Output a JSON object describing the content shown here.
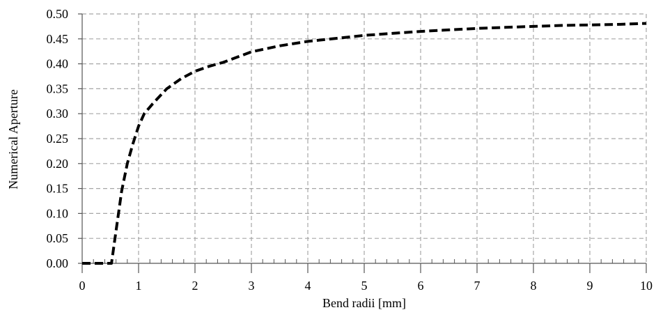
{
  "chart_data": {
    "type": "line",
    "title": "",
    "xlabel": "Bend radii [mm]",
    "ylabel": "Numerical Aperture",
    "xlim": [
      0,
      10
    ],
    "ylim": [
      0,
      0.5
    ],
    "x_ticks": [
      0,
      1,
      2,
      3,
      4,
      5,
      6,
      7,
      8,
      9,
      10
    ],
    "x_tick_labels": [
      "0",
      "1",
      "2",
      "3",
      "4",
      "5",
      "6",
      "7",
      "8",
      "9",
      "10"
    ],
    "y_ticks": [
      0,
      0.05,
      0.1,
      0.15,
      0.2,
      0.25,
      0.3,
      0.35,
      0.4,
      0.45,
      0.5
    ],
    "y_tick_labels": [
      "0.00",
      "0.05",
      "0.10",
      "0.15",
      "0.20",
      "0.25",
      "0.30",
      "0.35",
      "0.40",
      "0.45",
      "0.50"
    ],
    "x_minor_tick_step": 0.2,
    "grid": true,
    "grid_style": "dashed",
    "legend": "none",
    "series": [
      {
        "line_style": "dashed",
        "color": "#000000",
        "x": [
          0,
          0.25,
          0.5,
          0.52,
          0.6,
          0.7,
          0.8,
          0.9,
          1.0,
          1.1,
          1.25,
          1.5,
          1.75,
          2.0,
          2.25,
          2.5,
          3.0,
          3.5,
          4.0,
          4.5,
          5.0,
          5.5,
          6.0,
          6.5,
          7.0,
          7.5,
          8.0,
          8.5,
          9.0,
          9.5,
          10.0
        ],
        "y": [
          0,
          0,
          0,
          0.0,
          0.065,
          0.145,
          0.2,
          0.24,
          0.275,
          0.3,
          0.32,
          0.35,
          0.37,
          0.385,
          0.395,
          0.403,
          0.424,
          0.436,
          0.445,
          0.451,
          0.457,
          0.461,
          0.465,
          0.468,
          0.471,
          0.473,
          0.475,
          0.477,
          0.478,
          0.479,
          0.481
        ]
      }
    ]
  }
}
